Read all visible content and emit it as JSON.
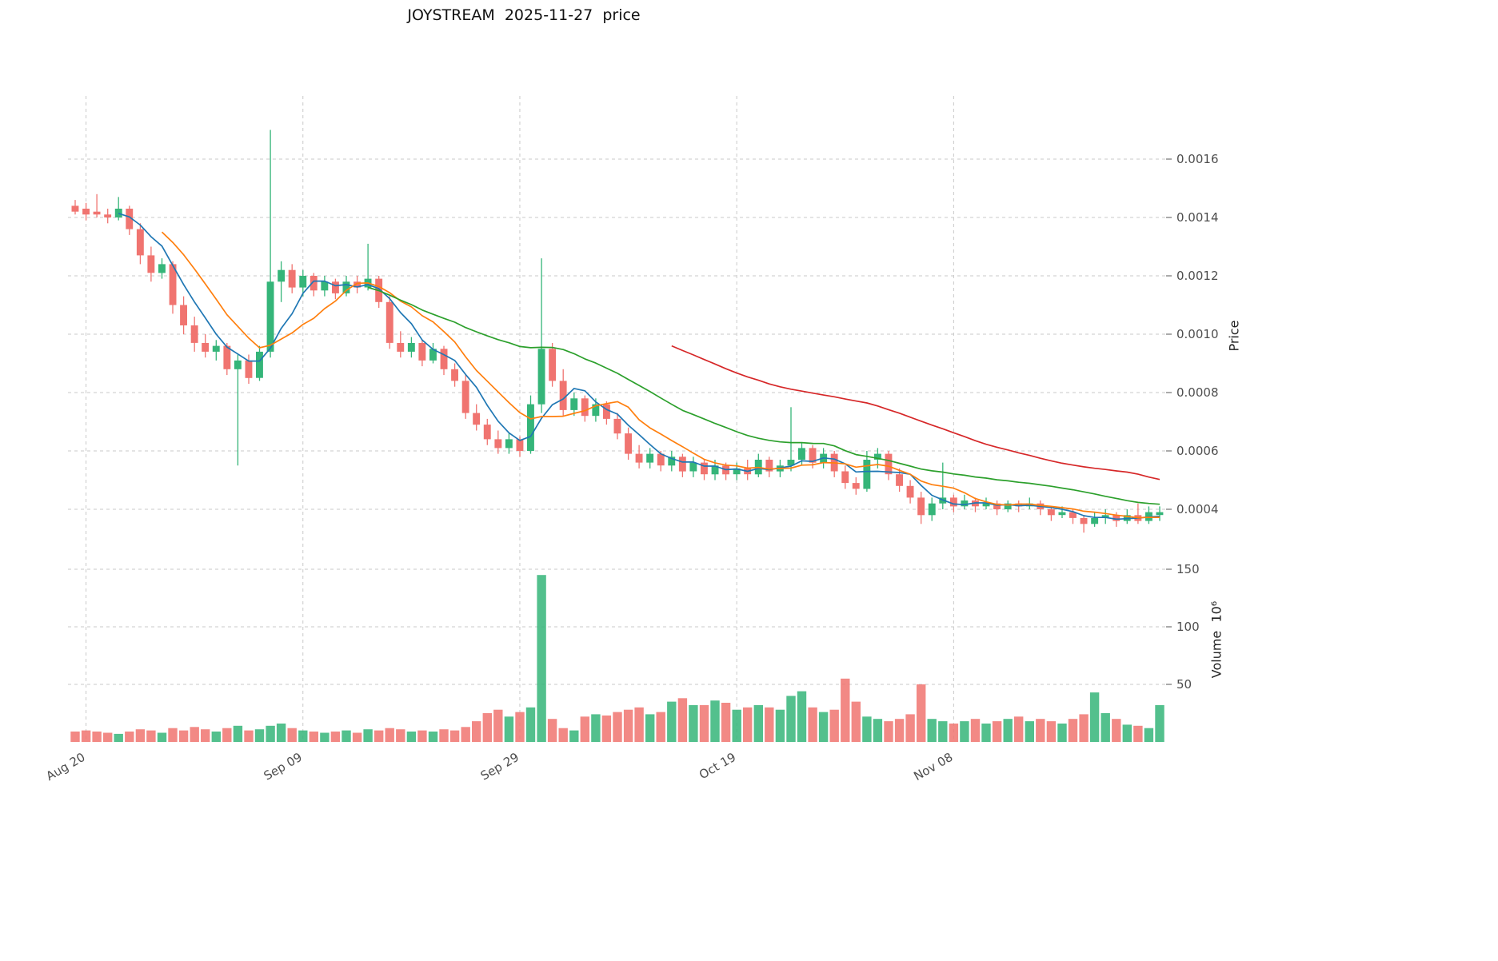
{
  "title": "JOYSTREAM  2025-11-27  price",
  "axes": {
    "price_label": "Price",
    "volume_label": "Volume  10⁶",
    "price_ticks": [
      0.0016,
      0.0014,
      0.0012,
      0.001,
      0.0008,
      0.0006,
      0.0004
    ],
    "volume_ticks": [
      150,
      100,
      50
    ],
    "x_ticks": [
      {
        "label": "Aug 20",
        "index": 1
      },
      {
        "label": "Sep 09",
        "index": 21
      },
      {
        "label": "Sep 29",
        "index": 41
      },
      {
        "label": "Oct 19",
        "index": 61
      },
      {
        "label": "Nov 08",
        "index": 81
      }
    ]
  },
  "colors": {
    "up": "#35b579",
    "down": "#f07470",
    "grid": "#c9c9c9",
    "tick_text": "#4d4d4d",
    "background": "#ffffff",
    "ma_blue": "#1f77b4",
    "ma_orange": "#ff7f0e",
    "ma_green": "#2ca02c",
    "ma_red": "#d62728"
  },
  "chart_data": {
    "type": "candlestick_with_volume",
    "title": "JOYSTREAM  2025-11-27  price",
    "symbol": "JOYSTREAM",
    "as_of_date": "2025-11-27",
    "ylabel": "Price",
    "volume_ylabel": "Volume  10⁶",
    "price_ylim": [
      0.00028,
      0.00181
    ],
    "volume_ylim": [
      0,
      160
    ],
    "volume_units_millions": true,
    "grid": "dashed",
    "ohlc_format": [
      "date",
      "open",
      "high",
      "low",
      "close",
      "volume_millions"
    ],
    "moving_averages": [
      {
        "name": "MA5",
        "window": 5,
        "color": "#1f77b4"
      },
      {
        "name": "MA9",
        "window": 9,
        "color": "#ff7f0e"
      },
      {
        "name": "MA28",
        "window": 28,
        "color": "#2ca02c"
      },
      {
        "name": "MA56",
        "window": 56,
        "color": "#d62728"
      }
    ],
    "candles": [
      [
        "2025-08-19",
        0.00144,
        0.00146,
        0.00141,
        0.00142,
        9
      ],
      [
        "2025-08-20",
        0.00143,
        0.00145,
        0.00139,
        0.00141,
        10
      ],
      [
        "2025-08-21",
        0.00142,
        0.00148,
        0.0014,
        0.00141,
        9
      ],
      [
        "2025-08-22",
        0.00141,
        0.00143,
        0.00138,
        0.0014,
        8
      ],
      [
        "2025-08-23",
        0.0014,
        0.00147,
        0.00139,
        0.00143,
        7
      ],
      [
        "2025-08-24",
        0.00143,
        0.00144,
        0.00134,
        0.00136,
        9
      ],
      [
        "2025-08-25",
        0.00136,
        0.00138,
        0.00124,
        0.00127,
        11
      ],
      [
        "2025-08-26",
        0.00127,
        0.0013,
        0.00118,
        0.00121,
        10
      ],
      [
        "2025-08-27",
        0.00121,
        0.00126,
        0.00119,
        0.00124,
        8
      ],
      [
        "2025-08-28",
        0.00124,
        0.00125,
        0.00107,
        0.0011,
        12
      ],
      [
        "2025-08-29",
        0.0011,
        0.00113,
        0.001,
        0.00103,
        10
      ],
      [
        "2025-08-30",
        0.00103,
        0.00106,
        0.00094,
        0.00097,
        13
      ],
      [
        "2025-08-31",
        0.00097,
        0.001,
        0.00092,
        0.00094,
        11
      ],
      [
        "2025-09-01",
        0.00094,
        0.00098,
        0.00091,
        0.00096,
        9
      ],
      [
        "2025-09-02",
        0.00096,
        0.00097,
        0.00086,
        0.00088,
        12
      ],
      [
        "2025-09-03",
        0.00088,
        0.00093,
        0.00055,
        0.00091,
        14
      ],
      [
        "2025-09-04",
        0.00091,
        0.00093,
        0.00083,
        0.00085,
        10
      ],
      [
        "2025-09-05",
        0.00085,
        0.00096,
        0.00084,
        0.00094,
        11
      ],
      [
        "2025-09-06",
        0.00094,
        0.0017,
        0.00092,
        0.00118,
        14
      ],
      [
        "2025-09-07",
        0.00118,
        0.00125,
        0.00111,
        0.00122,
        16
      ],
      [
        "2025-09-08",
        0.00122,
        0.00124,
        0.00114,
        0.00116,
        12
      ],
      [
        "2025-09-09",
        0.00116,
        0.00122,
        0.00113,
        0.0012,
        10
      ],
      [
        "2025-09-10",
        0.0012,
        0.00121,
        0.00113,
        0.00115,
        9
      ],
      [
        "2025-09-11",
        0.00115,
        0.0012,
        0.00113,
        0.00118,
        8
      ],
      [
        "2025-09-12",
        0.00118,
        0.00119,
        0.00112,
        0.00114,
        9
      ],
      [
        "2025-09-13",
        0.00114,
        0.0012,
        0.00113,
        0.00118,
        10
      ],
      [
        "2025-09-14",
        0.00118,
        0.0012,
        0.00114,
        0.00116,
        8
      ],
      [
        "2025-09-15",
        0.00116,
        0.00131,
        0.00115,
        0.00119,
        11
      ],
      [
        "2025-09-16",
        0.00119,
        0.0012,
        0.00109,
        0.00111,
        10
      ],
      [
        "2025-09-17",
        0.00111,
        0.00113,
        0.00095,
        0.00097,
        12
      ],
      [
        "2025-09-18",
        0.00097,
        0.00101,
        0.00092,
        0.00094,
        11
      ],
      [
        "2025-09-19",
        0.00094,
        0.00099,
        0.00092,
        0.00097,
        9
      ],
      [
        "2025-09-20",
        0.00097,
        0.00098,
        0.00089,
        0.00091,
        10
      ],
      [
        "2025-09-21",
        0.00091,
        0.00097,
        0.0009,
        0.00095,
        9
      ],
      [
        "2025-09-22",
        0.00095,
        0.00096,
        0.00086,
        0.00088,
        11
      ],
      [
        "2025-09-23",
        0.00088,
        0.0009,
        0.00082,
        0.00084,
        10
      ],
      [
        "2025-09-24",
        0.00084,
        0.00086,
        0.00071,
        0.00073,
        13
      ],
      [
        "2025-09-25",
        0.00073,
        0.00076,
        0.00067,
        0.00069,
        18
      ],
      [
        "2025-09-26",
        0.00069,
        0.00071,
        0.00062,
        0.00064,
        25
      ],
      [
        "2025-09-27",
        0.00064,
        0.00067,
        0.00059,
        0.00061,
        28
      ],
      [
        "2025-09-28",
        0.00061,
        0.00066,
        0.00059,
        0.00064,
        22
      ],
      [
        "2025-09-29",
        0.00064,
        0.00065,
        0.00058,
        0.0006,
        26
      ],
      [
        "2025-09-30",
        0.0006,
        0.00079,
        0.00059,
        0.00076,
        30
      ],
      [
        "2025-10-01",
        0.00076,
        0.00126,
        0.00073,
        0.00095,
        145
      ],
      [
        "2025-10-02",
        0.00095,
        0.00097,
        0.00082,
        0.00084,
        20
      ],
      [
        "2025-10-03",
        0.00084,
        0.00088,
        0.00072,
        0.00074,
        12
      ],
      [
        "2025-10-04",
        0.00074,
        0.0008,
        0.00072,
        0.00078,
        10
      ],
      [
        "2025-10-05",
        0.00078,
        0.00079,
        0.0007,
        0.00072,
        22
      ],
      [
        "2025-10-06",
        0.00072,
        0.00078,
        0.0007,
        0.00076,
        24
      ],
      [
        "2025-10-07",
        0.00076,
        0.00077,
        0.00069,
        0.00071,
        23
      ],
      [
        "2025-10-08",
        0.00071,
        0.00073,
        0.00064,
        0.00066,
        26
      ],
      [
        "2025-10-09",
        0.00066,
        0.00068,
        0.00057,
        0.00059,
        28
      ],
      [
        "2025-10-10",
        0.00059,
        0.00062,
        0.00054,
        0.00056,
        30
      ],
      [
        "2025-10-11",
        0.00056,
        0.00061,
        0.00054,
        0.00059,
        24
      ],
      [
        "2025-10-12",
        0.00059,
        0.0006,
        0.00053,
        0.00055,
        26
      ],
      [
        "2025-10-13",
        0.00055,
        0.0006,
        0.00053,
        0.00058,
        35
      ],
      [
        "2025-10-14",
        0.00058,
        0.00059,
        0.00051,
        0.00053,
        38
      ],
      [
        "2025-10-15",
        0.00053,
        0.00058,
        0.00051,
        0.00056,
        32
      ],
      [
        "2025-10-16",
        0.00056,
        0.00057,
        0.0005,
        0.00052,
        32
      ],
      [
        "2025-10-17",
        0.00052,
        0.00057,
        0.0005,
        0.00055,
        36
      ],
      [
        "2025-10-18",
        0.00055,
        0.00056,
        0.0005,
        0.00052,
        34
      ],
      [
        "2025-10-19",
        0.00052,
        0.00056,
        0.0005,
        0.00054,
        28
      ],
      [
        "2025-10-20",
        0.00054,
        0.00057,
        0.0005,
        0.00052,
        30
      ],
      [
        "2025-10-21",
        0.00052,
        0.00059,
        0.00051,
        0.00057,
        32
      ],
      [
        "2025-10-22",
        0.00057,
        0.00058,
        0.00051,
        0.00053,
        30
      ],
      [
        "2025-10-23",
        0.00053,
        0.00057,
        0.00051,
        0.00055,
        28
      ],
      [
        "2025-10-24",
        0.00055,
        0.00075,
        0.00053,
        0.00057,
        40
      ],
      [
        "2025-10-25",
        0.00057,
        0.00063,
        0.00055,
        0.00061,
        44
      ],
      [
        "2025-10-26",
        0.00061,
        0.00062,
        0.00054,
        0.00056,
        30
      ],
      [
        "2025-10-27",
        0.00056,
        0.00061,
        0.00054,
        0.00059,
        26
      ],
      [
        "2025-10-28",
        0.00059,
        0.0006,
        0.00051,
        0.00053,
        28
      ],
      [
        "2025-10-29",
        0.00053,
        0.00055,
        0.00047,
        0.00049,
        55
      ],
      [
        "2025-10-30",
        0.00049,
        0.00051,
        0.00045,
        0.00047,
        35
      ],
      [
        "2025-10-31",
        0.00047,
        0.0006,
        0.00046,
        0.00057,
        22
      ],
      [
        "2025-11-01",
        0.00057,
        0.00061,
        0.00054,
        0.00059,
        20
      ],
      [
        "2025-11-02",
        0.00059,
        0.0006,
        0.0005,
        0.00052,
        18
      ],
      [
        "2025-11-03",
        0.00052,
        0.00054,
        0.00046,
        0.00048,
        20
      ],
      [
        "2025-11-04",
        0.00048,
        0.0005,
        0.00042,
        0.00044,
        24
      ],
      [
        "2025-11-05",
        0.00044,
        0.00046,
        0.00035,
        0.00038,
        50
      ],
      [
        "2025-11-06",
        0.00038,
        0.00044,
        0.00036,
        0.00042,
        20
      ],
      [
        "2025-11-07",
        0.00042,
        0.00056,
        0.0004,
        0.00044,
        18
      ],
      [
        "2025-11-08",
        0.00044,
        0.00045,
        0.00039,
        0.00041,
        16
      ],
      [
        "2025-11-09",
        0.00041,
        0.00045,
        0.0004,
        0.00043,
        18
      ],
      [
        "2025-11-10",
        0.00043,
        0.00044,
        0.00039,
        0.00041,
        20
      ],
      [
        "2025-11-11",
        0.00041,
        0.00044,
        0.0004,
        0.00042,
        16
      ],
      [
        "2025-11-12",
        0.00042,
        0.00043,
        0.00038,
        0.0004,
        18
      ],
      [
        "2025-11-13",
        0.0004,
        0.00043,
        0.00039,
        0.00042,
        20
      ],
      [
        "2025-11-14",
        0.00042,
        0.00043,
        0.00039,
        0.00041,
        22
      ],
      [
        "2025-11-15",
        0.00041,
        0.00044,
        0.0004,
        0.00042,
        18
      ],
      [
        "2025-11-16",
        0.00042,
        0.00043,
        0.00038,
        0.0004,
        20
      ],
      [
        "2025-11-17",
        0.0004,
        0.00041,
        0.00036,
        0.00038,
        18
      ],
      [
        "2025-11-18",
        0.00038,
        0.00041,
        0.00037,
        0.00039,
        16
      ],
      [
        "2025-11-19",
        0.00039,
        0.0004,
        0.00035,
        0.00037,
        20
      ],
      [
        "2025-11-20",
        0.00037,
        0.00038,
        0.00032,
        0.00035,
        24
      ],
      [
        "2025-11-21",
        0.00035,
        0.00039,
        0.00034,
        0.00037,
        43
      ],
      [
        "2025-11-22",
        0.00037,
        0.0004,
        0.00035,
        0.00038,
        25
      ],
      [
        "2025-11-23",
        0.00038,
        0.00039,
        0.00034,
        0.00036,
        20
      ],
      [
        "2025-11-24",
        0.00036,
        0.0004,
        0.00035,
        0.00038,
        15
      ],
      [
        "2025-11-25",
        0.00038,
        0.00042,
        0.00035,
        0.00036,
        14
      ],
      [
        "2025-11-26",
        0.00036,
        0.00041,
        0.00035,
        0.00039,
        12
      ],
      [
        "2025-11-27",
        0.00038,
        0.00041,
        0.00036,
        0.00039,
        32
      ]
    ]
  }
}
